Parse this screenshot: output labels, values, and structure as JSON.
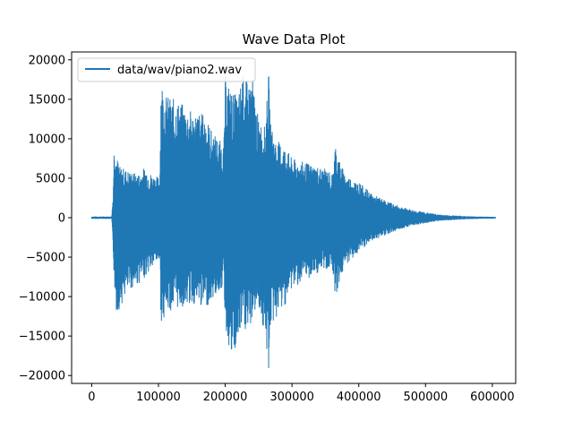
{
  "chart_data": {
    "type": "line",
    "title": "Wave Data Plot",
    "xlabel": "",
    "ylabel": "",
    "xlim": [
      -30000,
      635000
    ],
    "ylim": [
      -21000,
      21000
    ],
    "xticks": [
      0,
      100000,
      200000,
      300000,
      400000,
      500000,
      600000
    ],
    "xtick_labels": [
      "0",
      "100000",
      "200000",
      "300000",
      "400000",
      "500000",
      "600000"
    ],
    "yticks": [
      -20000,
      -15000,
      -10000,
      -5000,
      0,
      5000,
      10000,
      15000,
      20000
    ],
    "ytick_labels": [
      "−20000",
      "−15000",
      "−10000",
      "−5000",
      "0",
      "5000",
      "10000",
      "15000",
      "20000"
    ],
    "legend": {
      "placement": "upper-left"
    },
    "series": [
      {
        "name": "data/wav/piano2.wav",
        "color": "#1f77b4",
        "envelope": {
          "x": [
            0,
            30000,
            32000,
            34000,
            37000,
            42000,
            50000,
            60000,
            70000,
            80000,
            90000,
            100000,
            102000,
            104000,
            106000,
            112000,
            130000,
            150000,
            170000,
            180000,
            195000,
            198000,
            200000,
            210000,
            220000,
            225000,
            235000,
            240000,
            245000,
            250000,
            260000,
            265000,
            268000,
            275000,
            290000,
            300000,
            320000,
            340000,
            355000,
            360000,
            365000,
            368000,
            372000,
            380000,
            400000,
            420000,
            440000,
            460000,
            480000,
            500000,
            520000,
            540000,
            560000,
            580000,
            600000,
            605000
          ],
          "upper": [
            150,
            150,
            3000,
            11000,
            8000,
            6500,
            6200,
            5800,
            5600,
            6500,
            5500,
            5200,
            5000,
            18600,
            17000,
            15500,
            14800,
            13500,
            13200,
            11000,
            9500,
            9200,
            18000,
            16000,
            15500,
            18400,
            17000,
            18500,
            15000,
            12500,
            11500,
            18600,
            12000,
            10000,
            9000,
            7500,
            7000,
            6500,
            6000,
            5500,
            9500,
            8500,
            7000,
            5500,
            4500,
            3000,
            2200,
            1500,
            1000,
            700,
            400,
            300,
            200,
            150,
            120,
            100
          ],
          "lower": [
            -150,
            -150,
            -4000,
            -8500,
            -12200,
            -11500,
            -10000,
            -9000,
            -8500,
            -7500,
            -6500,
            -5500,
            -6000,
            -13500,
            -13000,
            -12000,
            -11500,
            -11000,
            -11500,
            -10500,
            -9000,
            -8000,
            -14000,
            -18500,
            -16000,
            -14000,
            -15000,
            -13000,
            -12000,
            -11000,
            -16000,
            -19500,
            -14000,
            -13000,
            -11000,
            -9000,
            -8000,
            -7000,
            -6500,
            -6000,
            -10000,
            -9500,
            -8000,
            -6000,
            -4500,
            -3000,
            -2200,
            -1500,
            -1000,
            -700,
            -400,
            -300,
            -200,
            -150,
            -120,
            -100
          ]
        }
      }
    ]
  }
}
